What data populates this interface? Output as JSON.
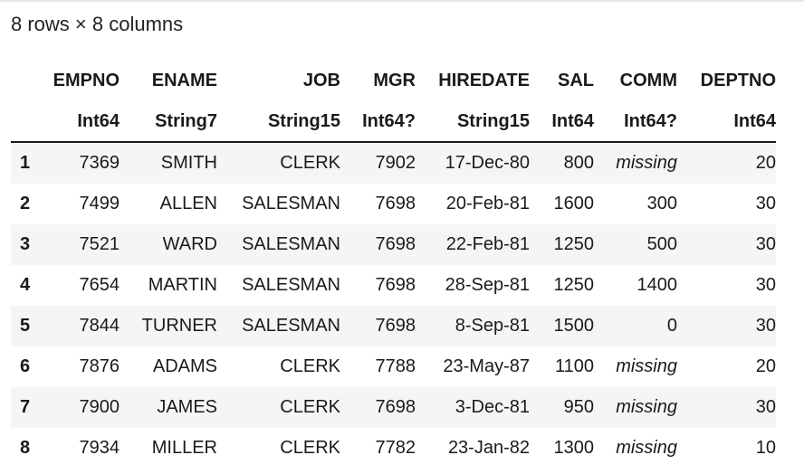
{
  "summary": "8 rows × 8 columns",
  "table": {
    "columns": [
      {
        "name": "EMPNO",
        "type": "Int64"
      },
      {
        "name": "ENAME",
        "type": "String7"
      },
      {
        "name": "JOB",
        "type": "String15"
      },
      {
        "name": "MGR",
        "type": "Int64?"
      },
      {
        "name": "HIREDATE",
        "type": "String15"
      },
      {
        "name": "SAL",
        "type": "Int64"
      },
      {
        "name": "COMM",
        "type": "Int64?"
      },
      {
        "name": "DEPTNO",
        "type": "Int64"
      }
    ],
    "rows": [
      {
        "index": "1",
        "cells": [
          "7369",
          "SMITH",
          "CLERK",
          "7902",
          "17-Dec-80",
          "800",
          "missing",
          "20"
        ]
      },
      {
        "index": "2",
        "cells": [
          "7499",
          "ALLEN",
          "SALESMAN",
          "7698",
          "20-Feb-81",
          "1600",
          "300",
          "30"
        ]
      },
      {
        "index": "3",
        "cells": [
          "7521",
          "WARD",
          "SALESMAN",
          "7698",
          "22-Feb-81",
          "1250",
          "500",
          "30"
        ]
      },
      {
        "index": "4",
        "cells": [
          "7654",
          "MARTIN",
          "SALESMAN",
          "7698",
          "28-Sep-81",
          "1250",
          "1400",
          "30"
        ]
      },
      {
        "index": "5",
        "cells": [
          "7844",
          "TURNER",
          "SALESMAN",
          "7698",
          "8-Sep-81",
          "1500",
          "0",
          "30"
        ]
      },
      {
        "index": "6",
        "cells": [
          "7876",
          "ADAMS",
          "CLERK",
          "7788",
          "23-May-87",
          "1100",
          "missing",
          "20"
        ]
      },
      {
        "index": "7",
        "cells": [
          "7900",
          "JAMES",
          "CLERK",
          "7698",
          "3-Dec-81",
          "950",
          "missing",
          "30"
        ]
      },
      {
        "index": "8",
        "cells": [
          "7934",
          "MILLER",
          "CLERK",
          "7782",
          "23-Jan-82",
          "1300",
          "missing",
          "10"
        ]
      }
    ]
  }
}
